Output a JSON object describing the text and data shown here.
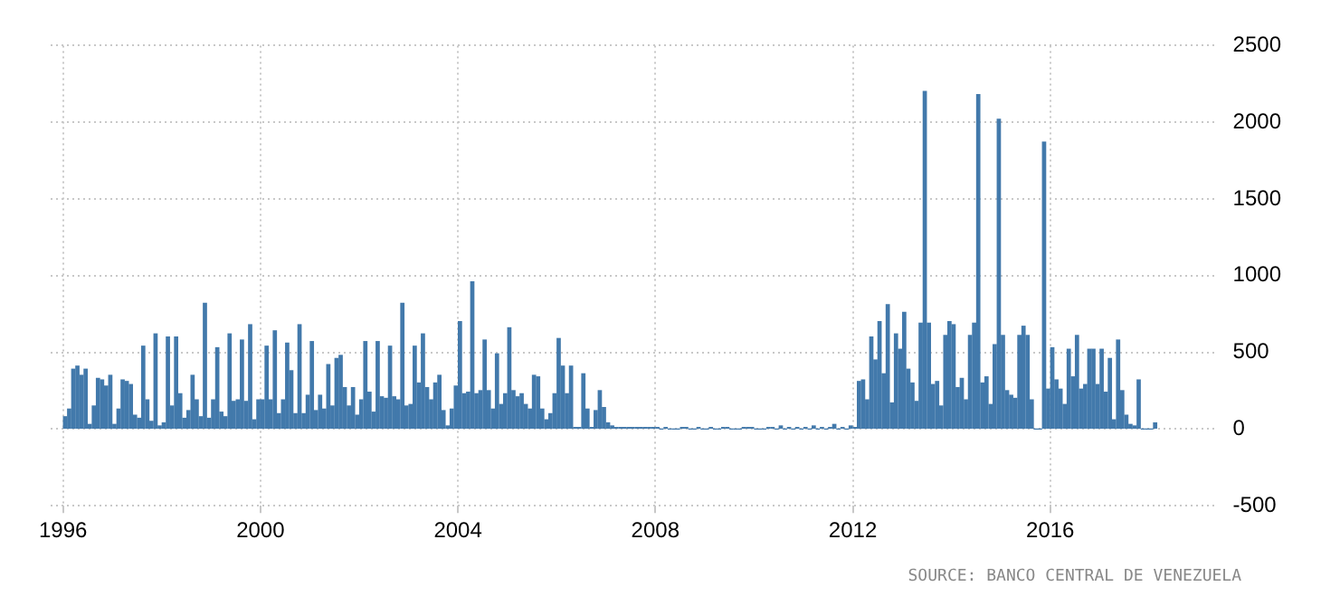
{
  "chart_data": {
    "type": "bar",
    "x": [
      "1996-01",
      "1996-02",
      "1996-03",
      "1996-04",
      "1996-05",
      "1996-06",
      "1996-07",
      "1996-08",
      "1996-09",
      "1996-10",
      "1996-11",
      "1996-12",
      "1997-01",
      "1997-02",
      "1997-03",
      "1997-04",
      "1997-05",
      "1997-06",
      "1997-07",
      "1997-08",
      "1997-09",
      "1997-10",
      "1997-11",
      "1997-12",
      "1998-01",
      "1998-02",
      "1998-03",
      "1998-04",
      "1998-05",
      "1998-06",
      "1998-07",
      "1998-08",
      "1998-09",
      "1998-10",
      "1998-11",
      "1998-12",
      "1999-01",
      "1999-02",
      "1999-03",
      "1999-04",
      "1999-05",
      "1999-06",
      "1999-07",
      "1999-08",
      "1999-09",
      "1999-10",
      "1999-11",
      "1999-12",
      "2000-01",
      "2000-02",
      "2000-03",
      "2000-04",
      "2000-05",
      "2000-06",
      "2000-07",
      "2000-08",
      "2000-09",
      "2000-10",
      "2000-11",
      "2000-12",
      "2001-01",
      "2001-02",
      "2001-03",
      "2001-04",
      "2001-05",
      "2001-06",
      "2001-07",
      "2001-08",
      "2001-09",
      "2001-10",
      "2001-11",
      "2001-12",
      "2002-01",
      "2002-02",
      "2002-03",
      "2002-04",
      "2002-05",
      "2002-06",
      "2002-07",
      "2002-08",
      "2002-09",
      "2002-10",
      "2002-11",
      "2002-12",
      "2003-01",
      "2003-02",
      "2003-03",
      "2003-04",
      "2003-05",
      "2003-06",
      "2003-07",
      "2003-08",
      "2003-09",
      "2003-10",
      "2003-11",
      "2003-12",
      "2004-01",
      "2004-02",
      "2004-03",
      "2004-04",
      "2004-05",
      "2004-06",
      "2004-07",
      "2004-08",
      "2004-09",
      "2004-10",
      "2004-11",
      "2004-12",
      "2005-01",
      "2005-02",
      "2005-03",
      "2005-04",
      "2005-05",
      "2005-06",
      "2005-07",
      "2005-08",
      "2005-09",
      "2005-10",
      "2005-11",
      "2005-12",
      "2006-01",
      "2006-02",
      "2006-03",
      "2006-04",
      "2006-05",
      "2006-06",
      "2006-07",
      "2006-08",
      "2006-09",
      "2006-10",
      "2006-11",
      "2006-12",
      "2007-01",
      "2007-02",
      "2007-03",
      "2007-04",
      "2007-05",
      "2007-06",
      "2007-07",
      "2007-08",
      "2007-09",
      "2007-10",
      "2007-11",
      "2007-12",
      "2008-01",
      "2008-02",
      "2008-03",
      "2008-04",
      "2008-05",
      "2008-06",
      "2008-07",
      "2008-08",
      "2008-09",
      "2008-10",
      "2008-11",
      "2008-12",
      "2009-01",
      "2009-02",
      "2009-03",
      "2009-04",
      "2009-05",
      "2009-06",
      "2009-07",
      "2009-08",
      "2009-09",
      "2009-10",
      "2009-11",
      "2009-12",
      "2010-01",
      "2010-02",
      "2010-03",
      "2010-04",
      "2010-05",
      "2010-06",
      "2010-07",
      "2010-08",
      "2010-09",
      "2010-10",
      "2010-11",
      "2010-12",
      "2011-01",
      "2011-02",
      "2011-03",
      "2011-04",
      "2011-05",
      "2011-06",
      "2011-07",
      "2011-08",
      "2011-09",
      "2011-10",
      "2011-11",
      "2011-12",
      "2012-01",
      "2012-02",
      "2012-03",
      "2012-04",
      "2012-05",
      "2012-06",
      "2012-07",
      "2012-08",
      "2012-09",
      "2012-10",
      "2012-11",
      "2012-12",
      "2013-01",
      "2013-02",
      "2013-03",
      "2013-04",
      "2013-05",
      "2013-06",
      "2013-07",
      "2013-08",
      "2013-09",
      "2013-10",
      "2013-11",
      "2013-12",
      "2014-01",
      "2014-02",
      "2014-03",
      "2014-04",
      "2014-05",
      "2014-06",
      "2014-07",
      "2014-08",
      "2014-09",
      "2014-10",
      "2014-11",
      "2014-12",
      "2015-01",
      "2015-02",
      "2015-03",
      "2015-04",
      "2015-05",
      "2015-06",
      "2015-07",
      "2015-08",
      "2015-09",
      "2015-10",
      "2015-11",
      "2015-12",
      "2016-01",
      "2016-02",
      "2016-03",
      "2016-04",
      "2016-05",
      "2016-06",
      "2016-07",
      "2016-08",
      "2016-09",
      "2016-10",
      "2016-11",
      "2016-12",
      "2017-01",
      "2017-02",
      "2017-03",
      "2017-04",
      "2017-05",
      "2017-06",
      "2017-07",
      "2017-08",
      "2017-09",
      "2017-10",
      "2017-11",
      "2017-12",
      "2018-01",
      "2018-02"
    ],
    "values": [
      80,
      130,
      390,
      410,
      350,
      390,
      30,
      150,
      330,
      320,
      280,
      350,
      30,
      130,
      320,
      310,
      290,
      90,
      70,
      540,
      190,
      50,
      620,
      20,
      40,
      600,
      150,
      600,
      230,
      70,
      120,
      350,
      190,
      80,
      820,
      70,
      190,
      530,
      110,
      80,
      620,
      180,
      190,
      580,
      180,
      680,
      60,
      190,
      190,
      540,
      190,
      640,
      100,
      190,
      560,
      380,
      100,
      680,
      100,
      220,
      570,
      120,
      220,
      130,
      420,
      150,
      460,
      480,
      270,
      150,
      270,
      90,
      190,
      570,
      240,
      110,
      570,
      210,
      200,
      540,
      210,
      190,
      820,
      150,
      160,
      540,
      300,
      620,
      270,
      190,
      300,
      350,
      120,
      20,
      130,
      280,
      700,
      230,
      240,
      960,
      230,
      250,
      580,
      250,
      130,
      490,
      160,
      230,
      660,
      250,
      210,
      230,
      160,
      130,
      350,
      340,
      130,
      60,
      100,
      230,
      590,
      410,
      230,
      410,
      10,
      10,
      360,
      130,
      10,
      120,
      250,
      140,
      40,
      20,
      10,
      10,
      10,
      10,
      10,
      10,
      10,
      10,
      10,
      10,
      10,
      0,
      10,
      0,
      0,
      0,
      10,
      10,
      0,
      0,
      10,
      0,
      0,
      10,
      0,
      0,
      10,
      10,
      0,
      0,
      0,
      10,
      10,
      10,
      0,
      0,
      0,
      10,
      10,
      0,
      20,
      0,
      10,
      0,
      10,
      0,
      10,
      0,
      20,
      0,
      10,
      0,
      10,
      30,
      0,
      10,
      0,
      20,
      10,
      310,
      320,
      190,
      600,
      450,
      700,
      360,
      810,
      170,
      620,
      520,
      760,
      390,
      300,
      180,
      690,
      2200,
      690,
      290,
      310,
      150,
      610,
      700,
      680,
      270,
      330,
      190,
      610,
      690,
      2180,
      300,
      340,
      160,
      550,
      2020,
      610,
      250,
      220,
      200,
      610,
      670,
      610,
      190,
      0,
      0,
      1870,
      260,
      530,
      320,
      260,
      160,
      520,
      340,
      610,
      260,
      290,
      520,
      520,
      290,
      520,
      240,
      460,
      60,
      580,
      250,
      90,
      30,
      20,
      320,
      0,
      0,
      0,
      40
    ],
    "color": "#4279ab",
    "xlim": [
      "1995-10",
      "2019-05"
    ],
    "xticks": [
      "1996",
      "2000",
      "2004",
      "2008",
      "2012",
      "2016"
    ],
    "ylim": [
      -500,
      2500
    ],
    "yticks": [
      -500,
      0,
      500,
      1000,
      1500,
      2000,
      2500
    ],
    "grid": true,
    "annotations": [
      "SOURCE: BANCO CENTRAL DE VENEZUELA"
    ]
  }
}
